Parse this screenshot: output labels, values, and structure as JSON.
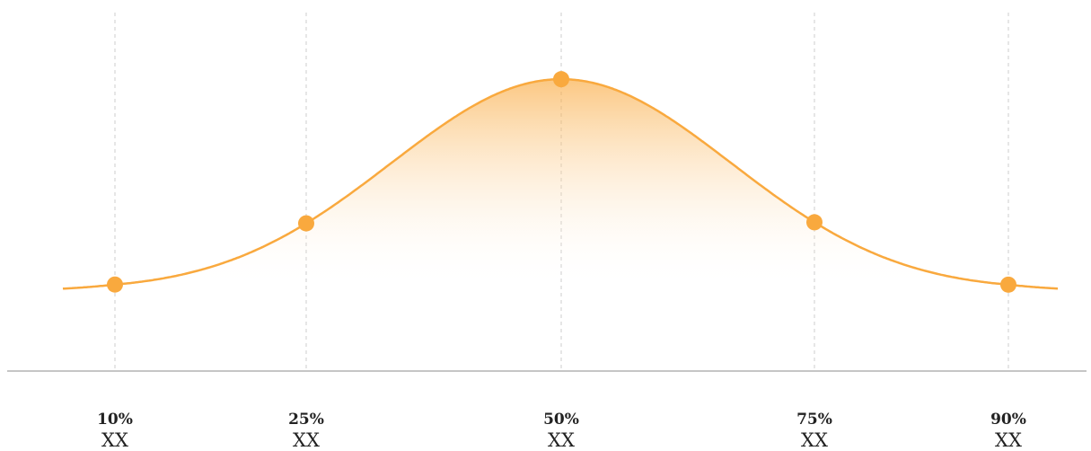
{
  "chart_data": {
    "type": "area",
    "x": [
      "10%",
      "25%",
      "50%",
      "75%",
      "90%"
    ],
    "values": [
      0.05,
      0.33,
      1.0,
      0.33,
      0.05
    ],
    "value_labels": [
      "XX",
      "XX",
      "XX",
      "XX",
      "XX"
    ],
    "ylim": [
      -0.35,
      1.2
    ],
    "grid": true,
    "legend": "none",
    "line_color": "#F9A93E",
    "marker_color": "#F9A93E",
    "fill_gradient_top": "#F9A93E",
    "fill_gradient_bottom": "#FFFFFF",
    "gridline_color": "#CCCCCC",
    "baseline_color": "#B3B3B3"
  }
}
